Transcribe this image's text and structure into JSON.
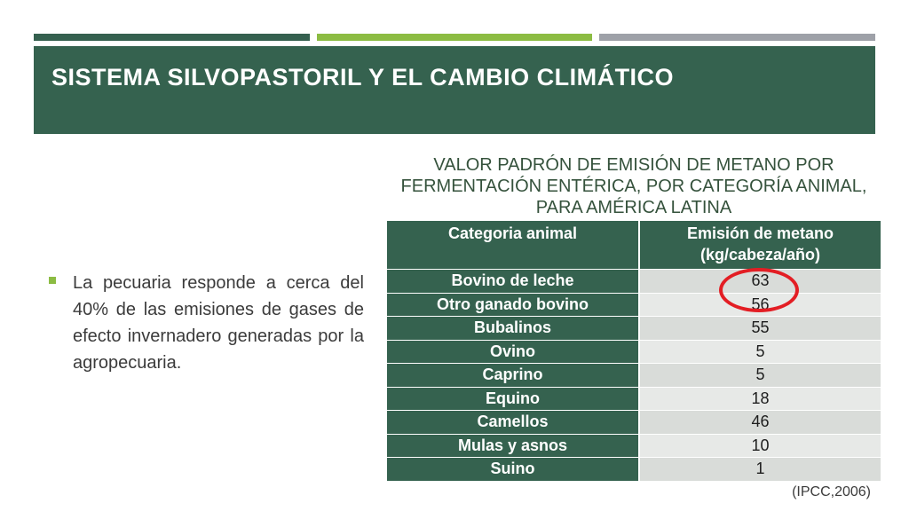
{
  "slide": {
    "title": "SISTEMA SILVOPASTORIL Y EL CAMBIO CLIMÁTICO",
    "bullet": "La pecuaria responde a cerca del 40% de las emisiones de gases de efecto invernadero generadas por la agropecuaria.",
    "table_title": "Valor padrón de emisión de metano por fermentación entérica, por categoría animal, para América Latina",
    "source": "(IPCC,2006)",
    "colors": {
      "header": "#35624f",
      "accent_green": "#8cbc43",
      "accent_gray": "#9ea1a8",
      "highlight": "#e31e24"
    }
  },
  "table": {
    "headers": [
      "Categoria animal",
      "Emisión de metano (kg/cabeza/año)"
    ],
    "rows": [
      {
        "category": "Bovino de leche",
        "value": "63"
      },
      {
        "category": "Otro ganado bovino",
        "value": "56"
      },
      {
        "category": "Bubalinos",
        "value": "55"
      },
      {
        "category": "Ovino",
        "value": "5"
      },
      {
        "category": "Caprino",
        "value": "5"
      },
      {
        "category": "Equino",
        "value": "18"
      },
      {
        "category": "Camellos",
        "value": "46"
      },
      {
        "category": "Mulas y asnos",
        "value": "10"
      },
      {
        "category": "Suino",
        "value": "1"
      }
    ]
  }
}
